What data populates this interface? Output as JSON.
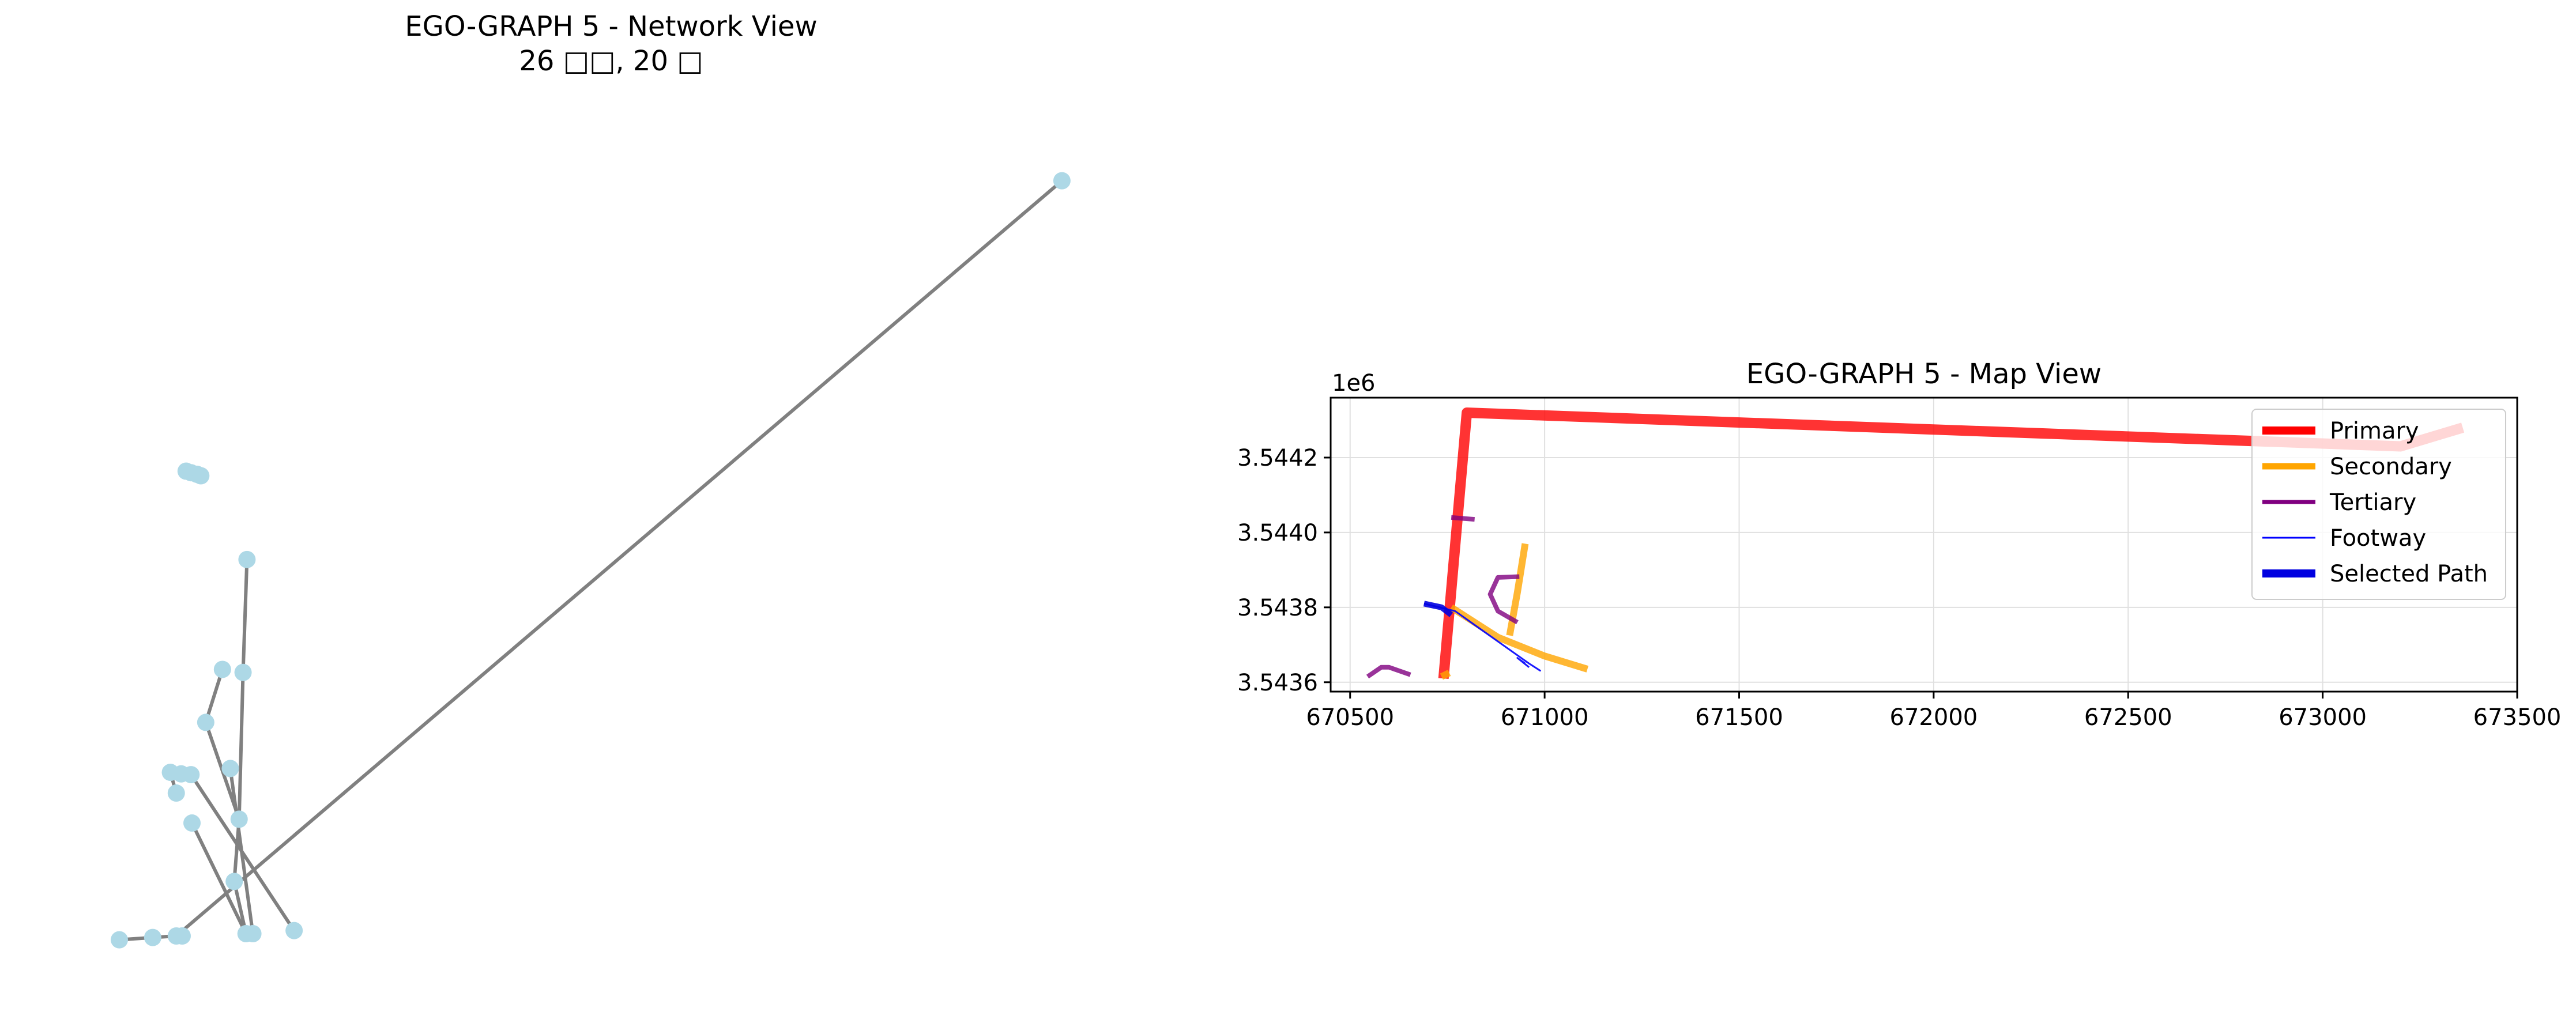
{
  "figure": {
    "left_title_line1": "EGO-GRAPH 5 - Network View",
    "left_title_line2": "26 □□, 20 □",
    "right_title": "EGO-GRAPH 5 - Map View",
    "y_offset_label": "1e6"
  },
  "chart_data": [
    {
      "type": "network",
      "title": "EGO-GRAPH 5 - Network View\n26 □□, 20 □",
      "node_color": "#add8e6",
      "edge_color": "#808080",
      "nodes": [
        {
          "id": 0,
          "x": 0.96,
          "y": 0.98
        },
        {
          "id": 1,
          "x": 0.068,
          "y": 0.602
        },
        {
          "id": 2,
          "x": 0.073,
          "y": 0.6
        },
        {
          "id": 3,
          "x": 0.079,
          "y": 0.598
        },
        {
          "id": 4,
          "x": 0.083,
          "y": 0.596
        },
        {
          "id": 5,
          "x": 0.13,
          "y": 0.487
        },
        {
          "id": 6,
          "x": 0.105,
          "y": 0.344
        },
        {
          "id": 7,
          "x": 0.126,
          "y": 0.34
        },
        {
          "id": 8,
          "x": 0.088,
          "y": 0.275
        },
        {
          "id": 9,
          "x": 0.052,
          "y": 0.21
        },
        {
          "id": 10,
          "x": 0.063,
          "y": 0.208
        },
        {
          "id": 11,
          "x": 0.073,
          "y": 0.207
        },
        {
          "id": 12,
          "x": 0.058,
          "y": 0.183
        },
        {
          "id": 13,
          "x": 0.074,
          "y": 0.144
        },
        {
          "id": 14,
          "x": 0.122,
          "y": 0.149
        },
        {
          "id": 15,
          "x": 0.117,
          "y": 0.068
        },
        {
          "id": 16,
          "x": 0.129,
          "y": 0.0
        },
        {
          "id": 17,
          "x": 0.136,
          "y": 0.0
        },
        {
          "id": 18,
          "x": 0.178,
          "y": 0.004
        },
        {
          "id": 19,
          "x": 0.0,
          "y": -0.008
        },
        {
          "id": 20,
          "x": 0.034,
          "y": -0.005
        },
        {
          "id": 21,
          "x": 0.058,
          "y": -0.003
        },
        {
          "id": 22,
          "x": 0.064,
          "y": -0.003
        },
        {
          "id": 23,
          "x": 0.113,
          "y": 0.215
        }
      ],
      "edges": [
        [
          0,
          21
        ],
        [
          19,
          20
        ],
        [
          20,
          21
        ],
        [
          5,
          7
        ],
        [
          7,
          14
        ],
        [
          6,
          8
        ],
        [
          8,
          14
        ],
        [
          14,
          15
        ],
        [
          15,
          16
        ],
        [
          13,
          16
        ],
        [
          9,
          11
        ],
        [
          11,
          18
        ],
        [
          9,
          12
        ],
        [
          23,
          17
        ]
      ]
    },
    {
      "type": "line",
      "title": "EGO-GRAPH 5 - Map View",
      "xlim": [
        670450,
        673500
      ],
      "ylim": [
        3543575,
        3544360
      ],
      "x_ticks": [
        "670500",
        "671000",
        "671500",
        "672000",
        "672500",
        "673000",
        "673500"
      ],
      "y_ticks": [
        "3.5436",
        "3.5438",
        "3.5440",
        "3.5442"
      ],
      "grid": true,
      "legend_position": "top-right",
      "legend": [
        {
          "label": "Primary",
          "color": "#ff0000",
          "width": 14
        },
        {
          "label": "Secondary",
          "color": "#ffa500",
          "width": 11
        },
        {
          "label": "Tertiary",
          "color": "#800080",
          "width": 7
        },
        {
          "label": "Footway",
          "color": "#0000ff",
          "width": 3
        },
        {
          "label": "Selected Path",
          "color": "#0000e0",
          "width": 14
        }
      ],
      "series": [
        {
          "class": "primary",
          "color": "#ff0000",
          "opacity": 0.8,
          "width": 18,
          "points": [
            [
              670740,
              3543610
            ],
            [
              670800,
              3544320
            ],
            [
              673200,
              3544230
            ],
            [
              673360,
              3544280
            ]
          ]
        },
        {
          "class": "secondary",
          "color": "#ffa500",
          "opacity": 0.8,
          "width": 12,
          "points": [
            [
              670760,
              3543800
            ],
            [
              670880,
              3543720
            ],
            [
              671000,
              3543670
            ],
            [
              671110,
              3543635
            ]
          ]
        },
        {
          "class": "secondary",
          "color": "#ffa500",
          "opacity": 0.8,
          "width": 12,
          "points": [
            [
              670910,
              3543725
            ],
            [
              670930,
              3543840
            ],
            [
              670950,
              3543970
            ]
          ]
        },
        {
          "class": "secondary",
          "color": "#ffa500",
          "opacity": 0.8,
          "width": 12,
          "points": [
            [
              670735,
              3543615
            ],
            [
              670755,
              3543625
            ]
          ]
        },
        {
          "class": "tertiary",
          "color": "#800080",
          "opacity": 0.8,
          "width": 8,
          "points": [
            [
              670930,
              3543760
            ],
            [
              670880,
              3543790
            ],
            [
              670860,
              3543835
            ],
            [
              670880,
              3543880
            ],
            [
              670935,
              3543882
            ]
          ]
        },
        {
          "class": "tertiary",
          "color": "#800080",
          "opacity": 0.8,
          "width": 8,
          "points": [
            [
              670545,
              3543615
            ],
            [
              670580,
              3543640
            ],
            [
              670600,
              3543640
            ],
            [
              670655,
              3543620
            ]
          ]
        },
        {
          "class": "tertiary",
          "color": "#800080",
          "opacity": 0.8,
          "width": 8,
          "points": [
            [
              670760,
              3544040
            ],
            [
              670820,
              3544035
            ]
          ]
        },
        {
          "class": "footway",
          "color": "#0000ff",
          "opacity": 0.9,
          "width": 3,
          "points": [
            [
              670690,
              3543810
            ],
            [
              670770,
              3543790
            ],
            [
              670960,
              3543650
            ],
            [
              670990,
              3543630
            ]
          ]
        },
        {
          "class": "footway",
          "color": "#0000ff",
          "opacity": 0.9,
          "width": 3,
          "points": [
            [
              670950,
              3543650
            ],
            [
              670930,
              3543665
            ],
            [
              670960,
              3543640
            ]
          ]
        },
        {
          "class": "selected-path",
          "color": "#0000e0",
          "opacity": 0.9,
          "width": 10,
          "points": [
            [
              670690,
              3543810
            ],
            [
              670735,
              3543800
            ],
            [
              670760,
              3543780
            ]
          ]
        }
      ]
    }
  ]
}
